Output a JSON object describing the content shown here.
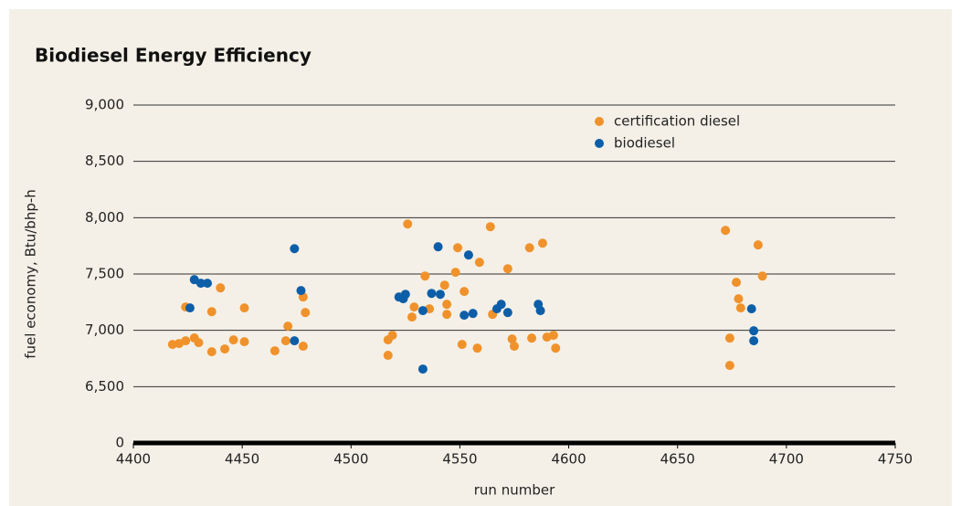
{
  "chart_data": {
    "type": "scatter",
    "title": "Biodiesel Energy Efficiency",
    "x_label": "run number",
    "y_label": "fuel economy, Btu/bhp-h",
    "xlim": [
      4400,
      4750
    ],
    "xticks": [
      4400,
      4450,
      4500,
      4550,
      4600,
      4650,
      4700,
      4750
    ],
    "ylim": [
      6000,
      9000
    ],
    "yticks": [
      0,
      {
        "value": 6500,
        "label": "6,500"
      },
      {
        "value": 7000,
        "label": "7,000"
      },
      {
        "value": 7500,
        "label": "7,500"
      },
      {
        "value": 8000,
        "label": "8,000"
      },
      {
        "value": 8500,
        "label": "8,500"
      },
      {
        "value": 9000,
        "label": "9,000"
      }
    ],
    "axis_break": true,
    "grid": true,
    "legend": "upper right",
    "series": [
      {
        "name": "certification diesel",
        "color": "#f0922b",
        "x": [
          4418,
          4421,
          4424,
          4424,
          4428,
          4430,
          4436,
          4436,
          4440,
          4442,
          4446,
          4451,
          4451,
          4465,
          4470,
          4471,
          4478,
          4479,
          4478,
          4517,
          4517,
          4519,
          4526,
          4528,
          4529,
          4534,
          4536,
          4543,
          4544,
          4544,
          4548,
          4549,
          4551,
          4552,
          4558,
          4559,
          4564,
          4565,
          4572,
          4574,
          4575,
          4582,
          4583,
          4588,
          4590,
          4593,
          4594,
          4672,
          4674,
          4674,
          4677,
          4678,
          4679,
          4687,
          4689
        ],
        "values": [
          6875,
          6883,
          6907,
          7207,
          6932,
          6891,
          7166,
          6810,
          7377,
          6834,
          6915,
          6899,
          7199,
          6818,
          6907,
          7037,
          6859,
          7158,
          7296,
          6915,
          6778,
          6956,
          7944,
          7118,
          7207,
          7482,
          7191,
          7401,
          7231,
          7142,
          7515,
          7733,
          6875,
          7345,
          6842,
          7604,
          7920,
          7142,
          7547,
          6923,
          6859,
          7733,
          6931,
          7774,
          6940,
          6956,
          6842,
          7887,
          6931,
          6688,
          7426,
          7280,
          7199,
          7758,
          7482
        ]
      },
      {
        "name": "biodiesel",
        "color": "#0d5ea8",
        "x": [
          4426,
          4428,
          4431,
          4434,
          4474,
          4477,
          4474,
          4522,
          4524,
          4525,
          4533,
          4533,
          4537,
          4540,
          4541,
          4554,
          4552,
          4556,
          4569,
          4567,
          4572,
          4586,
          4587,
          4684,
          4685,
          4685
        ],
        "values": [
          7199,
          7450,
          7418,
          7418,
          7725,
          7353,
          6907,
          7296,
          7280,
          7320,
          7175,
          6656,
          7328,
          7742,
          7320,
          7669,
          7134,
          7150,
          7231,
          7191,
          7158,
          7231,
          7175,
          7191,
          6996,
          6907
        ]
      }
    ]
  }
}
